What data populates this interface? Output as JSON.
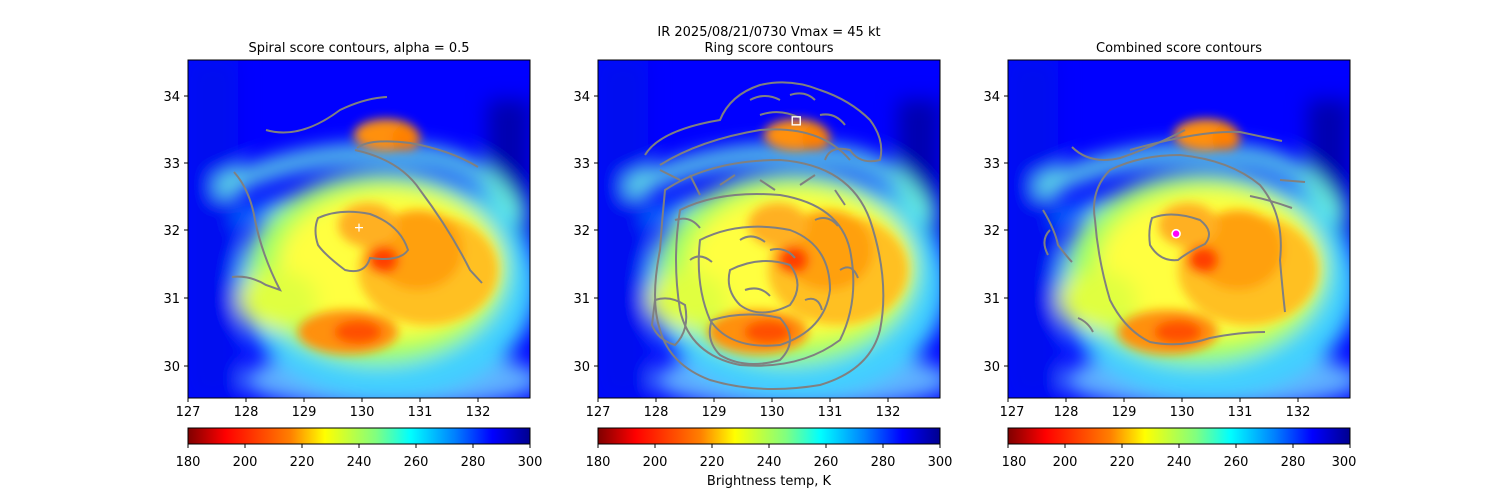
{
  "figure": {
    "suptitle_line1": "IR  2025/08/21/0730    Vmax = 45 kt"
  },
  "colors": {
    "colormap": [
      "#7f0000",
      "#ff0000",
      "#ff8000",
      "#ffff00",
      "#80ff80",
      "#00ffff",
      "#0080ff",
      "#0000ff",
      "#00008f"
    ],
    "contour": "#808080",
    "spiral_marker": "#ffffff",
    "ring_marker": "#ffffff",
    "combined_marker_edge": "#ffffff",
    "combined_marker_fill": "#ff00ff"
  },
  "chart_data": [
    {
      "type": "heatmap",
      "title": "Spiral score contours, alpha =  0.5",
      "xlim": [
        127,
        132.9
      ],
      "ylim": [
        29.5,
        34.5
      ],
      "xticks": [
        "127",
        "128",
        "129",
        "130",
        "131",
        "132"
      ],
      "yticks": [
        "30",
        "31",
        "32",
        "33",
        "34"
      ],
      "marker": {
        "shape": "plus",
        "x": 129.95,
        "y": 32.02
      },
      "colorbar": {
        "vmin": 180,
        "vmax": 300,
        "ticks": [
          "180",
          "200",
          "220",
          "240",
          "260",
          "280",
          "300"
        ],
        "label": ""
      }
    },
    {
      "type": "heatmap",
      "title": "Ring score contours",
      "xlim": [
        127,
        132.9
      ],
      "ylim": [
        29.5,
        34.5
      ],
      "xticks": [
        "127",
        "128",
        "129",
        "130",
        "131",
        "132"
      ],
      "yticks": [
        "30",
        "31",
        "32",
        "33",
        "34"
      ],
      "marker": {
        "shape": "square",
        "x": 130.42,
        "y": 33.6
      },
      "colorbar": {
        "vmin": 180,
        "vmax": 300,
        "ticks": [
          "180",
          "200",
          "220",
          "240",
          "260",
          "280",
          "300"
        ],
        "label": "Brightness temp, K"
      }
    },
    {
      "type": "heatmap",
      "title": "Combined score contours",
      "xlim": [
        127,
        132.9
      ],
      "ylim": [
        29.5,
        34.5
      ],
      "xticks": [
        "127",
        "128",
        "129",
        "130",
        "131",
        "132"
      ],
      "yticks": [
        "30",
        "31",
        "32",
        "33",
        "34"
      ],
      "marker": {
        "shape": "circle",
        "x": 129.9,
        "y": 31.93
      },
      "colorbar": {
        "vmin": 180,
        "vmax": 300,
        "ticks": [
          "180",
          "200",
          "220",
          "240",
          "260",
          "280",
          "300"
        ],
        "label": ""
      }
    }
  ]
}
